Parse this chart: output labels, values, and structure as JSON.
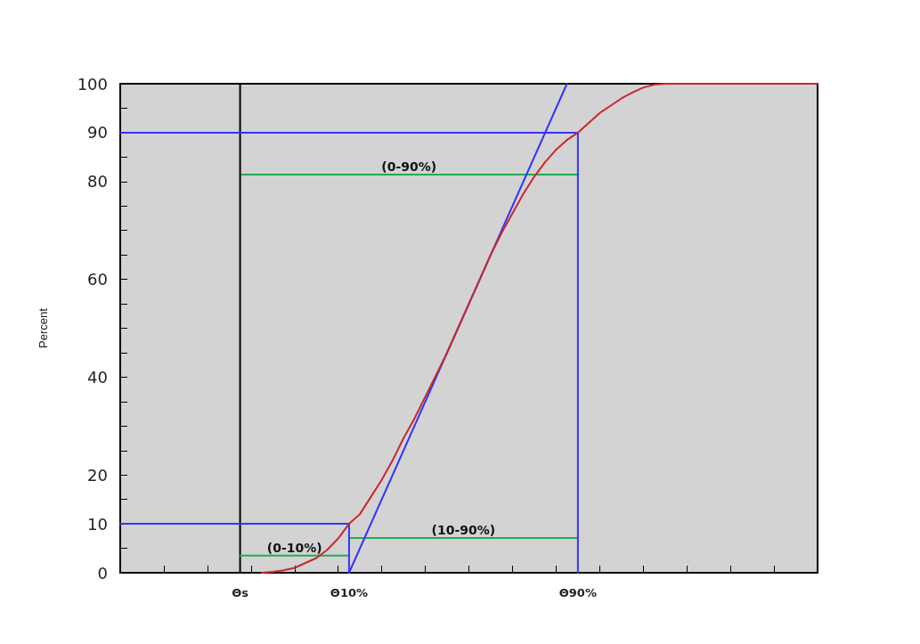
{
  "chart_data": {
    "type": "line",
    "ylabel": "Percent",
    "categories": [
      null,
      null,
      null,
      null,
      null,
      null,
      null,
      null,
      null,
      null,
      null,
      "Θs",
      null,
      null,
      null,
      null,
      null,
      null,
      null,
      null,
      null,
      "Θ10%",
      null,
      null,
      null,
      null,
      null,
      null,
      null,
      null,
      null,
      null,
      null,
      null,
      null,
      null,
      null,
      null,
      null,
      null,
      null,
      null,
      "Θ90%",
      null,
      null,
      null,
      null,
      null,
      null,
      null,
      null,
      null,
      null,
      null,
      null,
      null,
      null,
      null,
      null,
      null,
      null,
      null,
      null,
      null,
      null
    ],
    "ylim": [
      0,
      100
    ],
    "yticks": [
      0,
      {
        "value": 5,
        "label": null
      },
      10,
      {
        "value": 15,
        "label": null
      },
      20,
      {
        "value": 25,
        "label": null
      },
      {
        "value": 30,
        "label": null
      },
      {
        "value": 35,
        "label": null
      },
      40,
      {
        "value": 45,
        "label": null
      },
      {
        "value": 50,
        "label": null
      },
      {
        "value": 55,
        "label": null
      },
      60,
      {
        "value": 65,
        "label": null
      },
      {
        "value": 70,
        "label": null
      },
      {
        "value": 75,
        "label": null
      },
      80,
      {
        "value": 85,
        "label": null
      },
      90,
      {
        "value": 95,
        "label": null
      },
      100
    ],
    "grid": false,
    "marker": "none",
    "line_style": "solid",
    "series": [
      {
        "color": "#c8282b",
        "values": [
          null,
          null,
          null,
          null,
          null,
          null,
          null,
          null,
          null,
          null,
          null,
          null,
          null,
          0,
          0.2,
          0.5,
          1,
          2,
          3,
          4.7,
          7,
          10,
          12,
          15.5,
          19,
          23,
          27.5,
          31.5,
          36,
          40.5,
          45,
          50,
          55,
          60,
          65,
          69.5,
          73.5,
          77.5,
          81,
          84,
          86.5,
          88.5,
          90,
          92,
          94,
          95.5,
          97,
          98.2,
          99.2,
          99.8,
          100,
          100,
          100,
          100,
          100,
          100,
          100,
          100,
          100,
          100,
          100,
          100,
          100,
          100,
          100
        ]
      },
      {
        "color": "#3333ff",
        "values": [
          null,
          null,
          null,
          null,
          null,
          null,
          null,
          null,
          null,
          null,
          null,
          null,
          null,
          null,
          null,
          null,
          null,
          null,
          null,
          null,
          null,
          0,
          null,
          null,
          null,
          null,
          null,
          null,
          null,
          null,
          null,
          null,
          null,
          null,
          null,
          null,
          null,
          null,
          null,
          null,
          null,
          100,
          null,
          null,
          null,
          null,
          null,
          null,
          null,
          null,
          null,
          null,
          null,
          null,
          null,
          null,
          null,
          null,
          null,
          null,
          null,
          null,
          null,
          null,
          null
        ]
      },
      {
        "color": "#3333ff",
        "values": [
          10,
          null,
          null,
          null,
          null,
          null,
          null,
          null,
          null,
          null,
          null,
          null,
          null,
          null,
          null,
          null,
          null,
          null,
          null,
          null,
          null,
          10,
          null,
          null,
          null,
          null,
          null,
          null,
          null,
          null,
          null,
          null,
          null,
          null,
          null,
          null,
          null,
          null,
          null,
          null,
          null,
          null,
          null,
          null,
          null,
          null,
          null,
          null,
          null,
          null,
          null,
          null,
          null,
          null,
          null,
          null,
          null,
          null,
          null,
          null,
          null,
          null,
          null,
          null,
          null
        ]
      },
      {
        "color": "#3333ff",
        "x": [
          "Θ10%",
          "Θ10%"
        ],
        "values": [
          10,
          0
        ]
      },
      {
        "color": "#3333ff",
        "values": [
          90,
          null,
          null,
          null,
          null,
          null,
          null,
          null,
          null,
          null,
          null,
          null,
          null,
          null,
          null,
          null,
          null,
          null,
          null,
          null,
          null,
          null,
          null,
          null,
          null,
          null,
          null,
          null,
          null,
          null,
          null,
          null,
          null,
          null,
          null,
          null,
          null,
          null,
          null,
          null,
          null,
          null,
          90,
          null,
          null,
          null,
          null,
          null,
          null,
          null,
          null,
          null,
          null,
          null,
          null,
          null,
          null,
          null,
          null,
          null,
          null,
          null,
          null,
          null,
          null
        ]
      },
      {
        "color": "#3333ff",
        "x": [
          "Θ90%",
          "Θ90%"
        ],
        "values": [
          90,
          0
        ]
      },
      {
        "name": "(0-10%)",
        "color": "#22aa55",
        "values": [
          null,
          null,
          null,
          null,
          null,
          null,
          null,
          null,
          null,
          null,
          null,
          3.5,
          null,
          null,
          null,
          null,
          null,
          null,
          null,
          null,
          null,
          3.5,
          null,
          null,
          null,
          null,
          null,
          null,
          null,
          null,
          null,
          null,
          null,
          null,
          null,
          null,
          null,
          null,
          null,
          null,
          null,
          null,
          null,
          null,
          null,
          null,
          null,
          null,
          null,
          null,
          null,
          null,
          null,
          null,
          null,
          null,
          null,
          null,
          null,
          null,
          null,
          null,
          null,
          null,
          null
        ]
      },
      {
        "name": "(10-90%)",
        "color": "#22aa55",
        "values": [
          null,
          null,
          null,
          null,
          null,
          null,
          null,
          null,
          null,
          null,
          null,
          null,
          null,
          null,
          null,
          null,
          null,
          null,
          null,
          null,
          null,
          7.1,
          null,
          null,
          null,
          null,
          null,
          null,
          null,
          null,
          null,
          null,
          null,
          null,
          null,
          null,
          null,
          null,
          null,
          null,
          null,
          null,
          7.1,
          null,
          null,
          null,
          null,
          null,
          null,
          null,
          null,
          null,
          null,
          null,
          null,
          null,
          null,
          null,
          null,
          null,
          null,
          null,
          null,
          null,
          null
        ]
      },
      {
        "name": "(0-90%)",
        "color": "#22aa55",
        "values": [
          null,
          null,
          null,
          null,
          null,
          null,
          null,
          null,
          null,
          null,
          null,
          81.4,
          null,
          null,
          null,
          null,
          null,
          null,
          null,
          null,
          null,
          null,
          null,
          null,
          null,
          null,
          null,
          null,
          null,
          null,
          null,
          null,
          null,
          null,
          null,
          null,
          null,
          null,
          null,
          null,
          null,
          null,
          81.4,
          null,
          null,
          null,
          null,
          null,
          null,
          null,
          null,
          null,
          null,
          null,
          null,
          null,
          null,
          null,
          null,
          null,
          null,
          null,
          null,
          null,
          null
        ]
      }
    ],
    "ref_lines": [
      {
        "axis": "x",
        "value": "Θs",
        "color": "#000000"
      }
    ]
  }
}
